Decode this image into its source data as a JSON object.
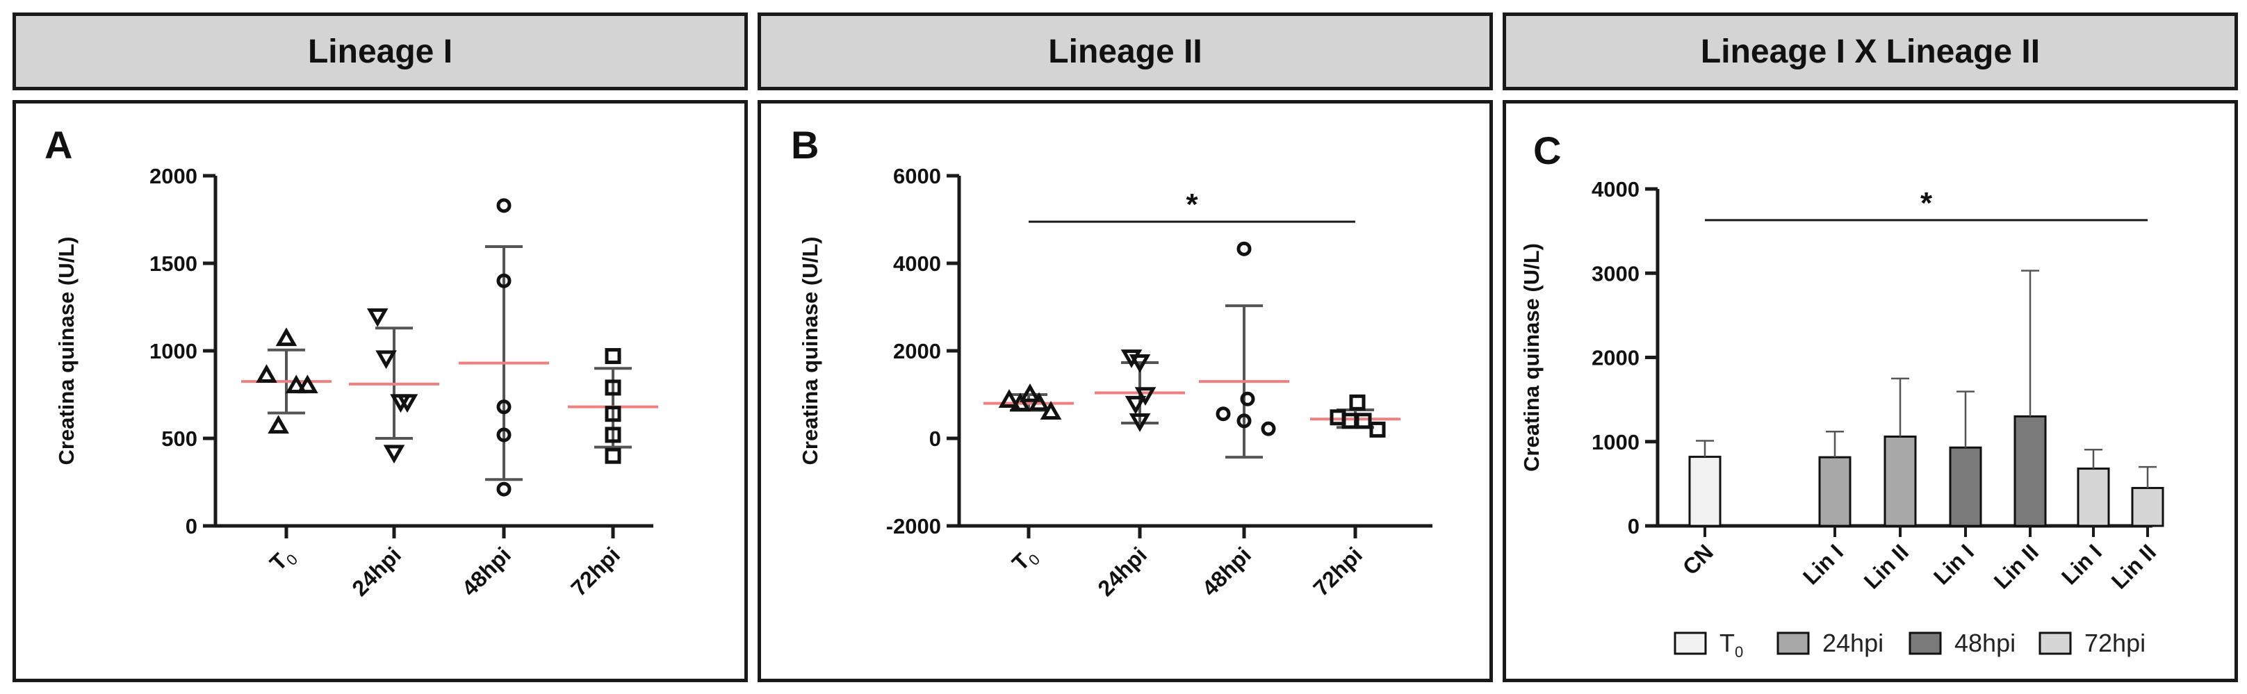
{
  "headers": {
    "lineage1": "Lineage I",
    "lineage2": "Lineage II",
    "cross": "Lineage I X Lineage II"
  },
  "colors": {
    "mean_line": "#f08080",
    "axis": "#1a1a1a",
    "bar_t0": "#f2f2f2",
    "bar_24": "#a8a8a8",
    "bar_48": "#7a7a7a",
    "bar_72": "#d6d6d6"
  },
  "chart_data": [
    {
      "id": "A",
      "type": "scatter",
      "panel_label": "A",
      "title": "",
      "ylabel": "Creatina quinase (U/L)",
      "ylim": [
        0,
        2000
      ],
      "yticks": [
        "0",
        "500",
        "1000",
        "1500",
        "2000"
      ],
      "categories": [
        "T0",
        "24hpi",
        "48hpi",
        "72hpi"
      ],
      "category_base": [
        "T",
        "24hpi",
        "48hpi",
        "72hpi"
      ],
      "category_sub": [
        "0",
        "",
        "",
        ""
      ],
      "markers": [
        "triangle-up",
        "triangle-down",
        "circle",
        "square"
      ],
      "points": [
        [
          [
            -0.3,
            860
          ],
          [
            -0.12,
            570
          ],
          [
            0.0,
            1070
          ],
          [
            0.15,
            800
          ],
          [
            0.32,
            800
          ]
        ],
        [
          [
            -0.25,
            1200
          ],
          [
            -0.12,
            960
          ],
          [
            0.0,
            420
          ],
          [
            0.1,
            710
          ],
          [
            0.2,
            710
          ]
        ],
        [
          [
            0.0,
            1830
          ],
          [
            0.0,
            1400
          ],
          [
            0.0,
            680
          ],
          [
            0.0,
            520
          ],
          [
            0.0,
            210
          ]
        ],
        [
          [
            0.0,
            970
          ],
          [
            0.0,
            790
          ],
          [
            0.0,
            640
          ],
          [
            0.0,
            520
          ],
          [
            0.0,
            400
          ]
        ]
      ],
      "means": [
        825,
        810,
        930,
        680
      ],
      "sd": [
        [
          645,
          1005
        ],
        [
          500,
          1130
        ],
        [
          265,
          1595
        ],
        [
          450,
          900
        ]
      ]
    },
    {
      "id": "B",
      "type": "scatter",
      "panel_label": "B",
      "title": "",
      "ylabel": "Creatina quinase (U/L)",
      "ylim": [
        -2000,
        6000
      ],
      "yticks": [
        "-2000",
        "0",
        "2000",
        "4000",
        "6000"
      ],
      "categories": [
        "T0",
        "24hpi",
        "48hpi",
        "72hpi"
      ],
      "category_base": [
        "T",
        "24hpi",
        "48hpi",
        "72hpi"
      ],
      "category_sub": [
        "0",
        "",
        "",
        ""
      ],
      "markers": [
        "triangle-up",
        "triangle-down",
        "circle",
        "square"
      ],
      "points": [
        [
          [
            -0.28,
            870
          ],
          [
            -0.12,
            790
          ],
          [
            0.02,
            1000
          ],
          [
            0.15,
            800
          ],
          [
            0.32,
            600
          ]
        ],
        [
          [
            -0.12,
            1860
          ],
          [
            0.0,
            1750
          ],
          [
            -0.06,
            800
          ],
          [
            0.0,
            400
          ],
          [
            0.08,
            1000
          ]
        ],
        [
          [
            -0.3,
            560
          ],
          [
            0.0,
            4330
          ],
          [
            0.05,
            900
          ],
          [
            0.0,
            400
          ],
          [
            0.35,
            220
          ]
        ],
        [
          [
            -0.25,
            480
          ],
          [
            -0.08,
            400
          ],
          [
            0.03,
            820
          ],
          [
            0.12,
            400
          ],
          [
            0.32,
            200
          ]
        ]
      ],
      "means": [
        800,
        1040,
        1300,
        440
      ],
      "sd": [
        [
          640,
          1000
        ],
        [
          350,
          1730
        ],
        [
          -430,
          3030
        ],
        [
          250,
          650
        ]
      ],
      "significance": {
        "label": "*",
        "from": 0,
        "to": 3,
        "y": 4950
      }
    },
    {
      "id": "C",
      "type": "bar",
      "panel_label": "C",
      "title": "",
      "ylabel": "Creatina quinase (U/L)",
      "ylim": [
        0,
        4000
      ],
      "yticks": [
        "0",
        "1000",
        "2000",
        "3000",
        "4000"
      ],
      "x_labels": [
        "CN",
        "Lin I",
        "Lin II",
        "Lin I",
        "Lin II",
        "Lin I",
        "Lin II"
      ],
      "bars": [
        {
          "label": "CN",
          "group": "T0",
          "value": 820,
          "err": 1010
        },
        {
          "label": "Lin I",
          "group": "24hpi",
          "value": 815,
          "err": 1120
        },
        {
          "label": "Lin II",
          "group": "24hpi",
          "value": 1060,
          "err": 1750
        },
        {
          "label": "Lin I",
          "group": "48hpi",
          "value": 930,
          "err": 1595
        },
        {
          "label": "Lin II",
          "group": "48hpi",
          "value": 1300,
          "err": 3030
        },
        {
          "label": "Lin I",
          "group": "72hpi",
          "value": 680,
          "err": 905
        },
        {
          "label": "Lin II",
          "group": "72hpi",
          "value": 450,
          "err": 700
        }
      ],
      "legend": [
        {
          "name": "T0",
          "base": "T",
          "sub": "0",
          "color": "#f2f2f2"
        },
        {
          "name": "24hpi",
          "base": "24hpi",
          "sub": "",
          "color": "#a8a8a8"
        },
        {
          "name": "48hpi",
          "base": "48hpi",
          "sub": "",
          "color": "#7a7a7a"
        },
        {
          "name": "72hpi",
          "base": "72hpi",
          "sub": "",
          "color": "#d6d6d6"
        }
      ],
      "legend_position": "bottom",
      "significance": {
        "label": "*",
        "y": 3630
      }
    }
  ]
}
